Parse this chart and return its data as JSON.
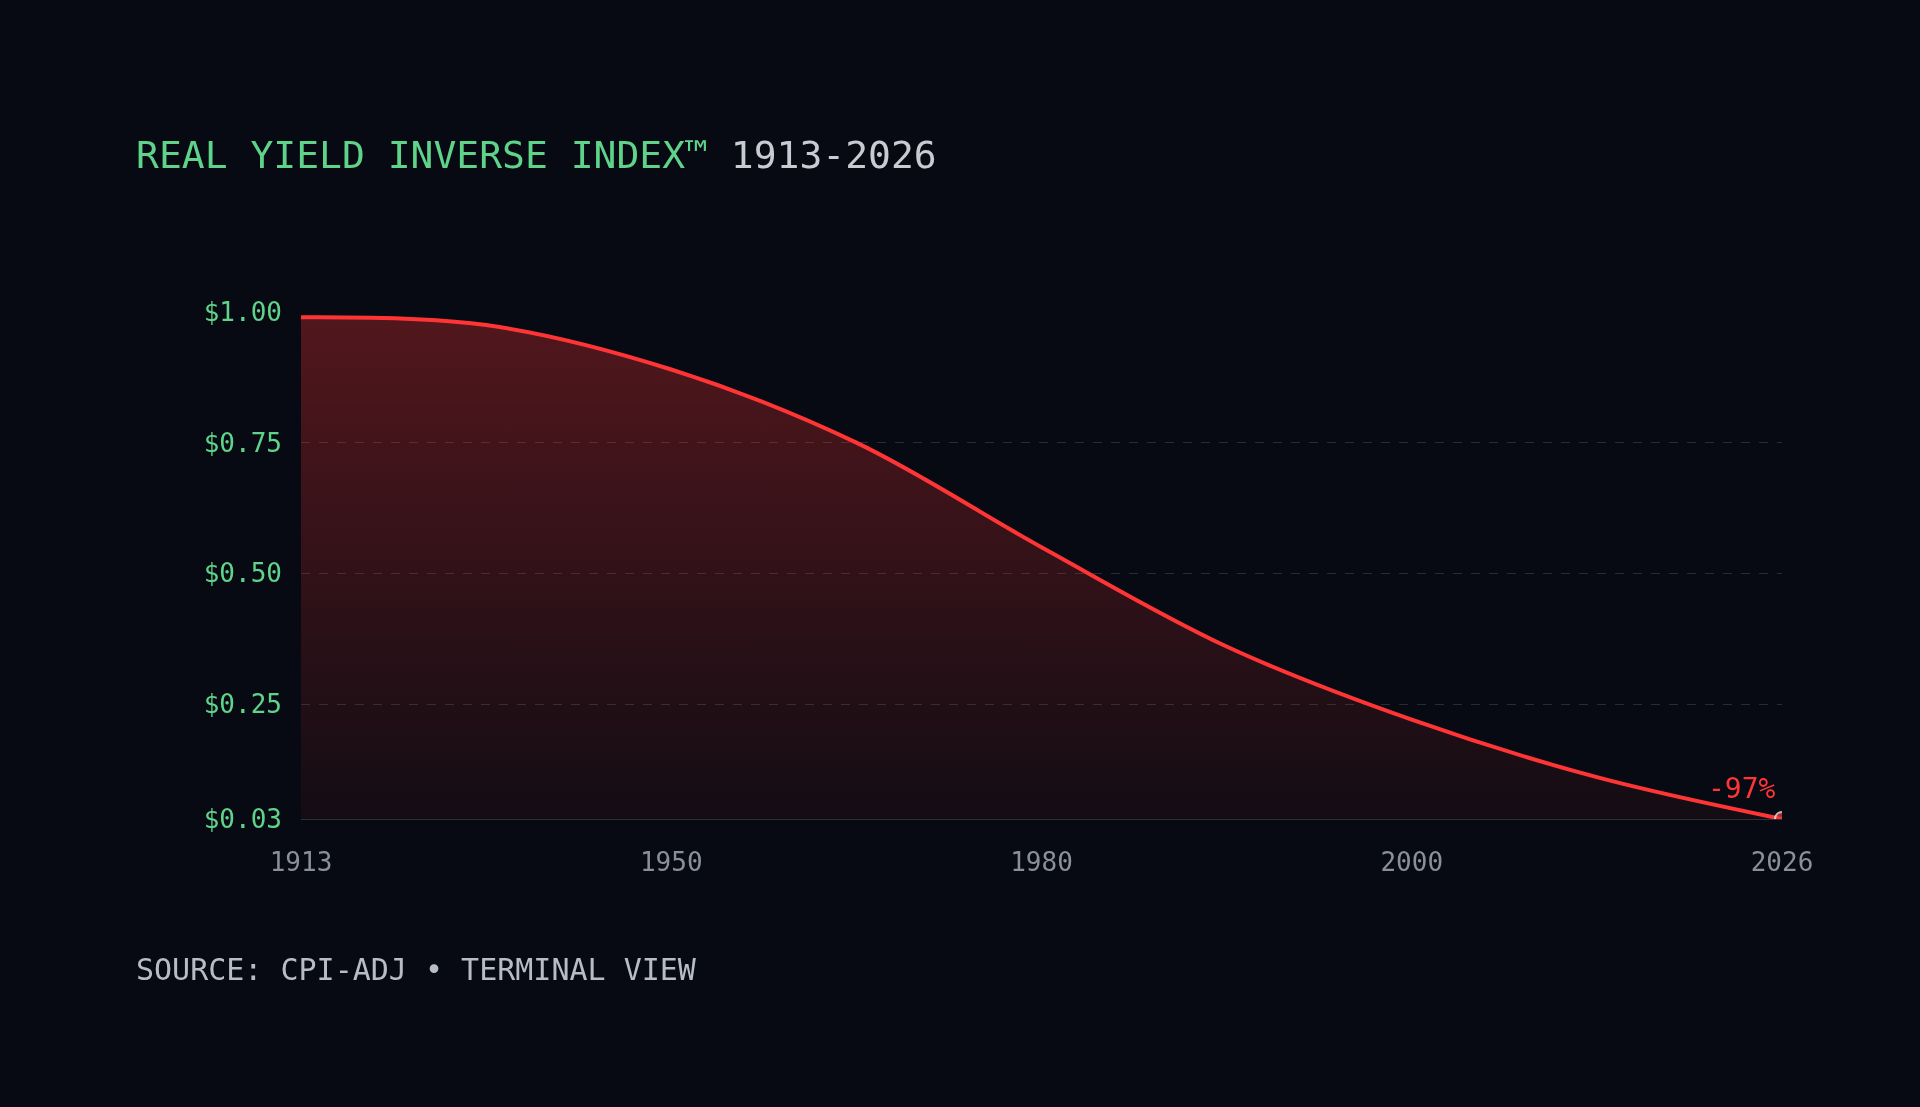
{
  "chart_data": {
    "type": "area",
    "title": "REAL YIELD INVERSE INDEX™",
    "subtitle": "1913-2026",
    "categories": [
      "1913",
      null,
      "1950",
      null,
      "1980",
      null,
      "2000",
      null,
      "2026"
    ],
    "series": [
      {
        "color": "#ff3535",
        "values": [
          0.99,
          0.975,
          0.89,
          0.75,
          0.55,
          0.36,
          0.22,
          0.11,
          0.03
        ]
      }
    ],
    "ylim": [
      0.03,
      1
    ],
    "yticks": [
      {
        "value": 0.03,
        "label": "$0.03"
      },
      {
        "value": 0.25,
        "label": "$0.25"
      },
      {
        "value": 0.5,
        "label": "$0.50"
      },
      {
        "value": 0.75,
        "label": "$0.75"
      },
      {
        "value": 1,
        "label": "$1.00"
      }
    ],
    "grid": "y",
    "annotations": [
      {
        "text": "-97%",
        "x": "2026",
        "y": 0.03
      },
      "SOURCE: CPI-ADJ • TERMINAL VIEW"
    ]
  }
}
